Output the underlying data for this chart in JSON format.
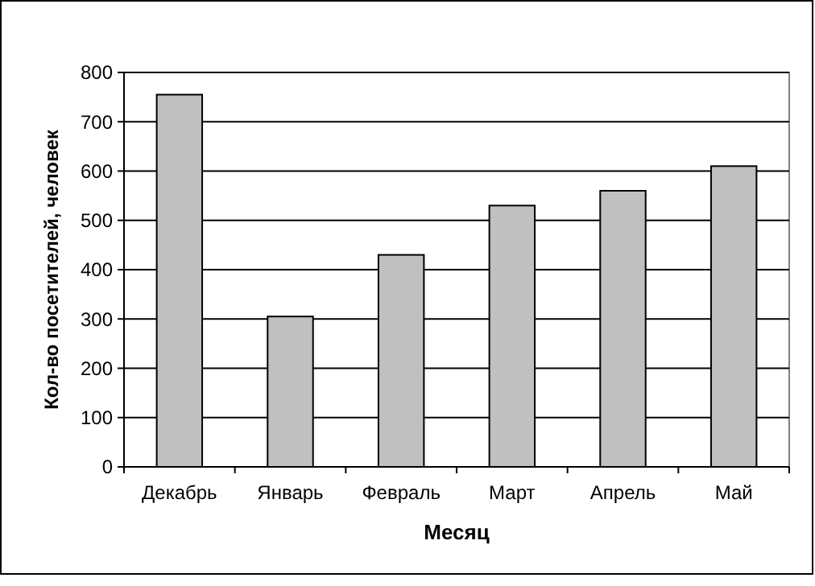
{
  "chart_data": {
    "type": "bar",
    "xlabel": "Месяц",
    "ylabel": "Кол-во посетителей, человек",
    "categories": [
      "Декабрь",
      "Январь",
      "Февраль",
      "Март",
      "Апрель",
      "Май"
    ],
    "values": [
      755,
      305,
      430,
      530,
      560,
      610
    ],
    "color": "#c0c0c0",
    "ylim": [
      0,
      800
    ],
    "yticks": [
      0,
      100,
      200,
      300,
      400,
      500,
      600,
      700,
      800
    ],
    "grid": "y"
  }
}
